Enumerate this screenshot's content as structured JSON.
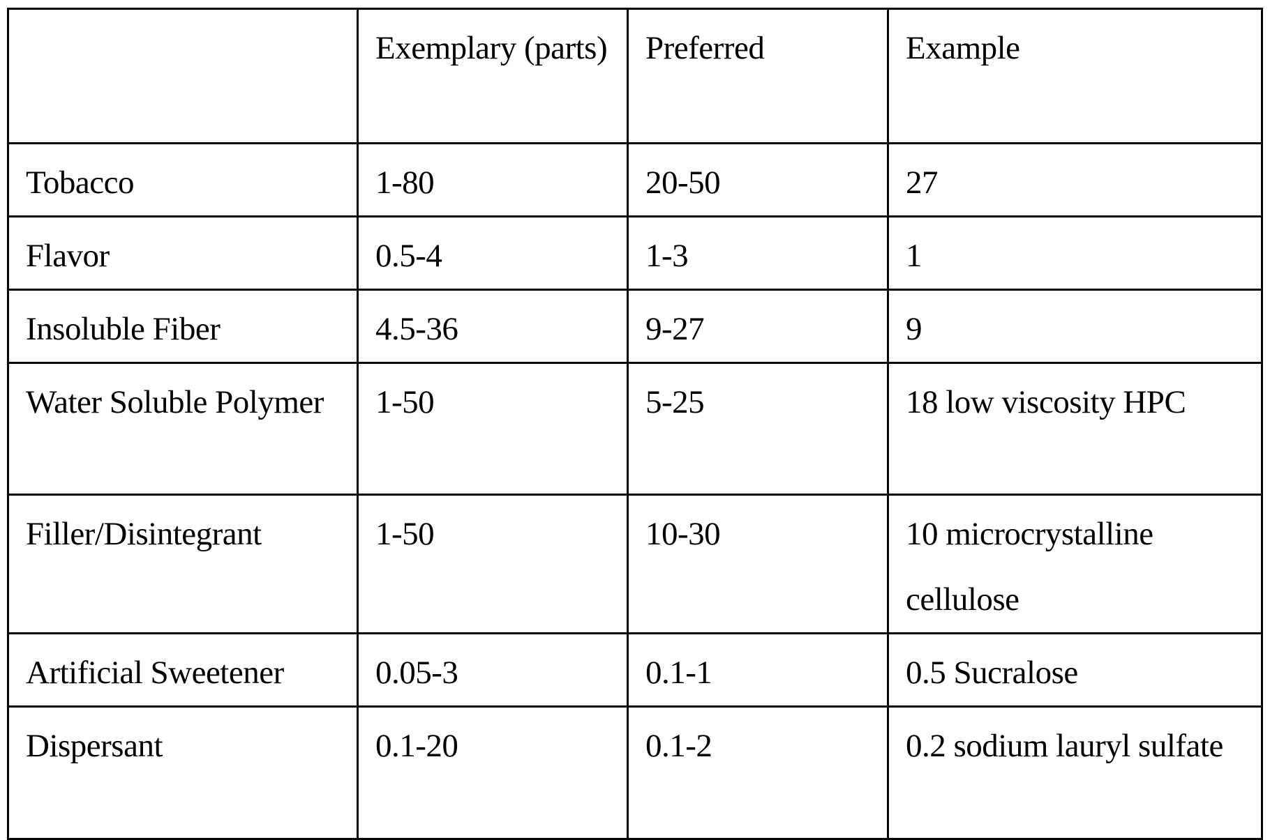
{
  "table": {
    "header": {
      "col0": "",
      "col1": "Exemplary (parts)",
      "col2": "Preferred",
      "col3": "Example"
    },
    "columns": [
      "",
      "Exemplary (parts)",
      "Preferred",
      "Example"
    ],
    "rows": [
      {
        "component": "Tobacco",
        "exemplary": "1-80",
        "preferred": "20-50",
        "example": "27"
      },
      {
        "component": "Flavor",
        "exemplary": "0.5-4",
        "preferred": "1-3",
        "example": "1"
      },
      {
        "component": "Insoluble Fiber",
        "exemplary": "4.5-36",
        "preferred": "9-27",
        "example": "9"
      },
      {
        "component": "Water Soluble Polymer",
        "exemplary": "1-50",
        "preferred": "5-25",
        "example": "18 low viscosity HPC"
      },
      {
        "component": "Filler/Disintegrant",
        "exemplary": "1-50",
        "preferred": "10-30",
        "example": "10 microcrystalline cellulose"
      },
      {
        "component": "Artificial Sweetener",
        "exemplary": "0.05-3",
        "preferred": "0.1-1",
        "example": "0.5 Sucralose"
      },
      {
        "component": "Dispersant",
        "exemplary": "0.1-20",
        "preferred": "0.1-2",
        "example": "0.2 sodium lauryl sulfate"
      }
    ]
  },
  "colors": {
    "text": "#000000",
    "border": "#000000",
    "background": "#ffffff"
  }
}
